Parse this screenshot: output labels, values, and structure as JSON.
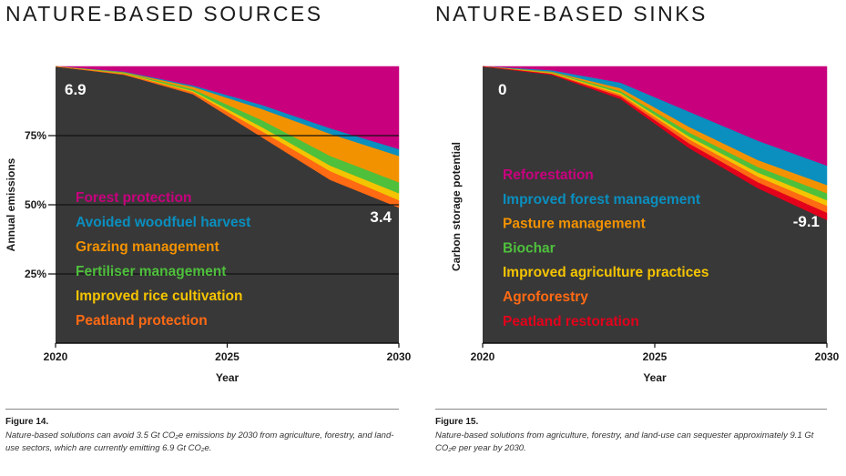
{
  "colors": {
    "plot_bg": "#383838",
    "forest": "#c8007e",
    "blue": "#0a8fbf",
    "orange": "#f39200",
    "green": "#4ec03c",
    "yellow": "#f4c400",
    "orange_red": "#ff6a13",
    "red": "#e3001b"
  },
  "left": {
    "title": "NATURE-BASED SOURCES",
    "caption_label": "Figure 14.",
    "caption_text": "Nature-based solutions can avoid 3.5 Gt CO₂e emissions by 2030 from agriculture, forestry, and land-use sectors, which are currently emitting 6.9 Gt CO₂e."
  },
  "right": {
    "title": "NATURE-BASED SINKS",
    "caption_label": "Figure 15.",
    "caption_text": "Nature-based solutions from agriculture, forestry, and land-use can sequester approximately 9.1 Gt CO₂e per year by 2030."
  },
  "chart_data": [
    {
      "type": "area",
      "title": "NATURE-BASED SOURCES",
      "xlabel": "Year",
      "ylabel": "Annual emissions",
      "x": [
        2020,
        2022,
        2024,
        2026,
        2028,
        2030
      ],
      "xticks": [
        "2020",
        "2025",
        "2030"
      ],
      "yticks": [
        "75%",
        "50%",
        "25%"
      ],
      "ylim": [
        0,
        100
      ],
      "start_label": "6.9",
      "end_label": "3.4",
      "grid": true,
      "series": [
        {
          "name": "Forest protection",
          "color": "#c8007e",
          "upper": [
            100,
            100,
            100,
            100,
            100,
            100
          ],
          "lower": [
            100,
            98,
            93,
            86,
            77.5,
            70
          ]
        },
        {
          "name": "Avoided woodfuel harvest",
          "color": "#0a8fbf",
          "upper": [
            100,
            98,
            93,
            86,
            77.5,
            70
          ],
          "lower": [
            100,
            97.8,
            92.5,
            84.5,
            75.5,
            67.5
          ]
        },
        {
          "name": "Grazing management",
          "color": "#f39200",
          "upper": [
            100,
            97.8,
            92.5,
            84.5,
            75.5,
            67.5
          ],
          "lower": [
            100,
            97.6,
            91.6,
            80.5,
            67.5,
            58
          ]
        },
        {
          "name": "Fertiliser management",
          "color": "#4ec03c",
          "upper": [
            100,
            97.6,
            91.6,
            80.5,
            67.5,
            58
          ],
          "lower": [
            100,
            97.4,
            91,
            78,
            64,
            54
          ]
        },
        {
          "name": "Improved rice cultivation",
          "color": "#f4c400",
          "upper": [
            100,
            97.4,
            91,
            78,
            64,
            54
          ],
          "lower": [
            100,
            97.2,
            90.6,
            76.5,
            62,
            51.5
          ]
        },
        {
          "name": "Peatland protection",
          "color": "#ff6a13",
          "upper": [
            100,
            97.2,
            90.6,
            76.5,
            62,
            51.5
          ],
          "lower": [
            100,
            97,
            90,
            74.5,
            59,
            49
          ]
        }
      ]
    },
    {
      "type": "area",
      "title": "NATURE-BASED SINKS",
      "xlabel": "Year",
      "ylabel": "Carbon storage potential",
      "x": [
        2020,
        2022,
        2024,
        2026,
        2028,
        2030
      ],
      "xticks": [
        "2020",
        "2025",
        "2030"
      ],
      "ylim": [
        0,
        100
      ],
      "start_label": "0",
      "end_label": "-9.1",
      "grid": false,
      "series": [
        {
          "name": "Reforestation",
          "color": "#c8007e",
          "upper": [
            100,
            100,
            100,
            100,
            100,
            100
          ],
          "lower": [
            100,
            98.5,
            94,
            83.5,
            73,
            64
          ]
        },
        {
          "name": "Improved forest management",
          "color": "#0a8fbf",
          "upper": [
            100,
            98.5,
            94,
            83.5,
            73,
            64
          ],
          "lower": [
            100,
            98,
            92,
            78,
            66,
            57
          ]
        },
        {
          "name": "Pasture management",
          "color": "#f39200",
          "upper": [
            100,
            98,
            92,
            78,
            66,
            57
          ],
          "lower": [
            100,
            97.8,
            91,
            76,
            63.5,
            54
          ]
        },
        {
          "name": "Biochar",
          "color": "#4ec03c",
          "upper": [
            100,
            97.8,
            91,
            76,
            63.5,
            54
          ],
          "lower": [
            100,
            97.6,
            90.3,
            74.5,
            61.5,
            51.5
          ]
        },
        {
          "name": "Improved agriculture practices",
          "color": "#f4c400",
          "upper": [
            100,
            97.6,
            90.3,
            74.5,
            61.5,
            51.5
          ],
          "lower": [
            100,
            97.4,
            89.7,
            73.5,
            60,
            49.5
          ]
        },
        {
          "name": "Agroforestry",
          "color": "#ff6a13",
          "upper": [
            100,
            97.4,
            89.7,
            73.5,
            60,
            49.5
          ],
          "lower": [
            100,
            97.2,
            89,
            72,
            58,
            47
          ]
        },
        {
          "name": "Peatland restoration",
          "color": "#e3001b",
          "upper": [
            100,
            97.2,
            89,
            72,
            58,
            47
          ],
          "lower": [
            100,
            97,
            88.3,
            70.5,
            56,
            44.5
          ]
        }
      ]
    }
  ]
}
